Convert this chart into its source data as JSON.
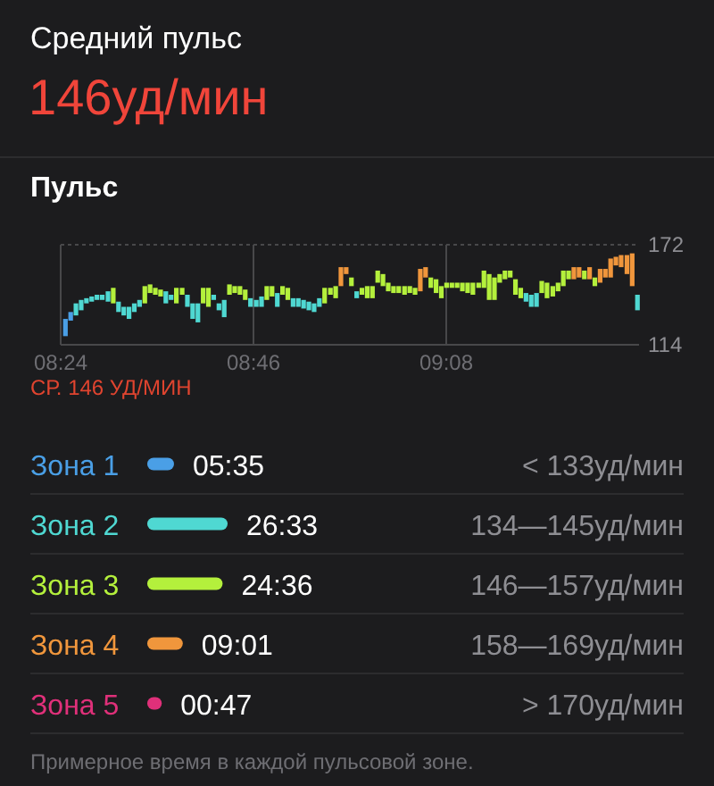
{
  "chart_data": [
    {
      "type": "other",
      "title": "Средний пульс",
      "subtitle": "146уд/мин"
    },
    {
      "type": "bar",
      "title": "Пульс",
      "annotations": [
        "СР. 146 УД/МИН"
      ],
      "grid": true,
      "xlim": [
        8.4,
        9.5
      ],
      "xticks": [
        {
          "value": 8.4,
          "label": "08:24"
        },
        {
          "value": 8.7667,
          "label": "08:46"
        },
        {
          "value": 9.1333,
          "label": "09:08"
        }
      ],
      "ylim": [
        114,
        172
      ],
      "yticks": [
        114,
        172
      ],
      "x": [
        8.409,
        8.419,
        8.429,
        8.439,
        8.449,
        8.459,
        8.469,
        8.479,
        8.49,
        8.5,
        8.51,
        8.52,
        8.53,
        8.54,
        8.55,
        8.56,
        8.57,
        8.58,
        8.59,
        8.6,
        8.61,
        8.62,
        8.631,
        8.641,
        8.651,
        8.661,
        8.671,
        8.681,
        8.691,
        8.701,
        8.711,
        8.721,
        8.731,
        8.741,
        8.751,
        8.761,
        8.772,
        8.782,
        8.792,
        8.802,
        8.812,
        8.822,
        8.832,
        8.842,
        8.852,
        8.862,
        8.872,
        8.882,
        8.892,
        8.902,
        8.913,
        8.923,
        8.933,
        8.943,
        8.953,
        8.963,
        8.973,
        8.983,
        8.993,
        9.003,
        9.013,
        9.023,
        9.033,
        9.043,
        9.054,
        9.064,
        9.074,
        9.084,
        9.094,
        9.104,
        9.114,
        9.124,
        9.134,
        9.144,
        9.154,
        9.164,
        9.174,
        9.184,
        9.195,
        9.205,
        9.215,
        9.225,
        9.235,
        9.245,
        9.255,
        9.265,
        9.275,
        9.285,
        9.295,
        9.305,
        9.315,
        9.325,
        9.336,
        9.346,
        9.356,
        9.366,
        9.376,
        9.386,
        9.396,
        9.406,
        9.416,
        9.426,
        9.436,
        9.446,
        9.456,
        9.466,
        9.477,
        9.487,
        9.497
      ],
      "base": [
        119,
        128,
        131,
        134,
        138,
        139,
        140,
        140,
        139,
        138,
        133,
        131,
        129,
        133,
        136,
        138,
        144,
        143,
        142,
        138,
        140,
        138,
        143,
        136,
        129,
        127,
        138,
        136,
        140,
        134,
        130,
        143,
        144,
        143,
        140,
        136,
        136,
        136,
        140,
        142,
        136,
        143,
        140,
        136,
        136,
        135,
        134,
        133,
        136,
        138,
        143,
        141,
        148,
        155,
        148,
        141,
        143,
        141,
        141,
        150,
        148,
        145,
        144,
        144,
        143,
        144,
        143,
        145,
        153,
        147,
        144,
        141,
        147,
        147,
        147,
        145,
        144,
        143,
        147,
        147,
        140,
        140,
        150,
        152,
        153,
        143,
        141,
        139,
        136,
        136,
        144,
        141,
        142,
        145,
        148,
        152,
        152,
        153,
        152,
        152,
        148,
        150,
        153,
        153,
        160,
        159,
        155,
        148,
        134
      ],
      "values": [
        10,
        5,
        7,
        6,
        3,
        3,
        3,
        3,
        6,
        9,
        6,
        5,
        7,
        5,
        4,
        10,
        5,
        4,
        4,
        7,
        3,
        9,
        4,
        7,
        9,
        11,
        9,
        11,
        3,
        4,
        10,
        6,
        4,
        5,
        6,
        5,
        4,
        6,
        8,
        6,
        8,
        5,
        7,
        5,
        5,
        5,
        5,
        5,
        5,
        9,
        4,
        7,
        11,
        4,
        5,
        4,
        4,
        7,
        7,
        7,
        7,
        5,
        4,
        4,
        5,
        4,
        4,
        13,
        6,
        6,
        8,
        7,
        3,
        3,
        3,
        5,
        6,
        7,
        3,
        10,
        15,
        13,
        5,
        5,
        4,
        9,
        6,
        5,
        7,
        8,
        7,
        9,
        6,
        5,
        9,
        5,
        7,
        6,
        5,
        7,
        5,
        8,
        5,
        11,
        5,
        7,
        11,
        19,
        9
      ],
      "colors": [
        "#4a9fe6",
        "#4a9fe6",
        "#4fd8d2",
        "#4fd8d2",
        "#4fd8d2",
        "#4fd8d2",
        "#4fd8d2",
        "#4fd8d2",
        "#4fd8d2",
        "#b4f03c",
        "#4fd8d2",
        "#4fd8d2",
        "#4fd8d2",
        "#4fd8d2",
        "#4fd8d2",
        "#b4f03c",
        "#b4f03c",
        "#b4f03c",
        "#b4f03c",
        "#4fd8d2",
        "#4fd8d2",
        "#b4f03c",
        "#b4f03c",
        "#4fd8d2",
        "#4fd8d2",
        "#4fd8d2",
        "#b4f03c",
        "#b4f03c",
        "#4fd8d2",
        "#4fd8d2",
        "#4fd8d2",
        "#b4f03c",
        "#b4f03c",
        "#b4f03c",
        "#b4f03c",
        "#4fd8d2",
        "#4fd8d2",
        "#4fd8d2",
        "#b4f03c",
        "#b4f03c",
        "#4fd8d2",
        "#b4f03c",
        "#b4f03c",
        "#4fd8d2",
        "#4fd8d2",
        "#4fd8d2",
        "#4fd8d2",
        "#4fd8d2",
        "#4fd8d2",
        "#b4f03c",
        "#b4f03c",
        "#b4f03c",
        "#f0963c",
        "#f0963c",
        "#b4f03c",
        "#4fd8d2",
        "#b4f03c",
        "#b4f03c",
        "#b4f03c",
        "#b4f03c",
        "#b4f03c",
        "#b4f03c",
        "#b4f03c",
        "#b4f03c",
        "#b4f03c",
        "#b4f03c",
        "#b4f03c",
        "#f0963c",
        "#f0963c",
        "#b4f03c",
        "#b4f03c",
        "#b4f03c",
        "#b4f03c",
        "#b4f03c",
        "#b4f03c",
        "#b4f03c",
        "#b4f03c",
        "#b4f03c",
        "#b4f03c",
        "#b4f03c",
        "#b4f03c",
        "#b4f03c",
        "#b4f03c",
        "#b4f03c",
        "#b4f03c",
        "#b4f03c",
        "#b4f03c",
        "#4fd8d2",
        "#4fd8d2",
        "#4fd8d2",
        "#b4f03c",
        "#b4f03c",
        "#b4f03c",
        "#b4f03c",
        "#b4f03c",
        "#b4f03c",
        "#f0963c",
        "#f0963c",
        "#b4f03c",
        "#f0963c",
        "#b4f03c",
        "#f0963c",
        "#f0963c",
        "#f0963c",
        "#f0963c",
        "#f0963c",
        "#f0963c",
        "#f0963c",
        "#4fd8d2"
      ]
    },
    {
      "type": "bar",
      "orientation": "horizontal",
      "categories": [
        "Зона 1",
        "Зона 2",
        "Зона 3",
        "Зона 4",
        "Зона 5"
      ],
      "values": [
        5.583,
        26.55,
        24.6,
        9.017,
        0.783
      ],
      "value_labels": [
        "05:35",
        "26:33",
        "24:36",
        "09:01",
        "00:47"
      ],
      "colors": [
        "#4a9fe6",
        "#4fd8d2",
        "#b4f03c",
        "#f0963c",
        "#e0307a"
      ],
      "annotations": [
        "< 133уд/мин",
        "134—145уд/мин",
        "146—157уд/мин",
        "158—169уд/мин",
        "> 170уд/мин",
        "Примерное время в каждой пульсовой зоне."
      ]
    }
  ]
}
